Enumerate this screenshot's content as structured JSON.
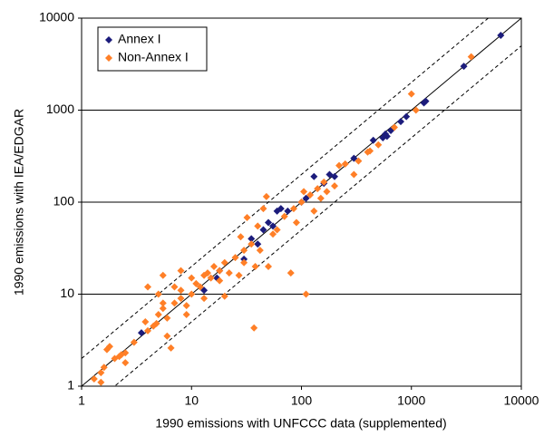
{
  "chart_data": {
    "type": "scatter",
    "x_label": "1990 emissions with UNFCCC data (supplemented)",
    "y_label": "1990 emissions with IEA/EDGAR",
    "xscale": "log",
    "yscale": "log",
    "xlim": [
      1,
      10000
    ],
    "ylim": [
      1,
      10000
    ],
    "xticks": [
      1,
      10,
      100,
      1000,
      10000
    ],
    "yticks": [
      1,
      10,
      100,
      1000,
      10000
    ],
    "grid": "y",
    "legend": "upper left",
    "reference_lines": [
      {
        "factor": 1,
        "style": "solid"
      },
      {
        "factor": 2,
        "style": "dashed"
      },
      {
        "factor": 0.5,
        "style": "dashed"
      }
    ],
    "series": [
      {
        "name": "Annex I",
        "color": "#1c1c7c",
        "x": [
          3.5,
          13,
          17,
          18,
          30,
          35,
          40,
          45,
          50,
          55,
          60,
          65,
          75,
          100,
          110,
          130,
          160,
          180,
          200,
          300,
          450,
          550,
          580,
          600,
          650,
          800,
          900,
          1300,
          1350,
          3000,
          6500
        ],
        "values": [
          3.8,
          11,
          15,
          18,
          24,
          40,
          35,
          50,
          60,
          55,
          80,
          85,
          80,
          100,
          110,
          190,
          160,
          200,
          190,
          300,
          470,
          500,
          550,
          520,
          600,
          750,
          850,
          1200,
          1250,
          3000,
          6500
        ]
      },
      {
        "name": "Non-Annex I",
        "color": "#ff7f27",
        "x": [
          1.3,
          1.5,
          1.5,
          1.6,
          1.7,
          1.8,
          2,
          2.2,
          2.3,
          2.5,
          2.5,
          3,
          3.8,
          4,
          4,
          4.5,
          4.8,
          5,
          5,
          5.5,
          5.5,
          5.5,
          6,
          6,
          6.5,
          7,
          7,
          8,
          8,
          8,
          9,
          9,
          10,
          10,
          11,
          12,
          13,
          13,
          14,
          15,
          16,
          18,
          18,
          20,
          20,
          22,
          25,
          27,
          28,
          30,
          30,
          32,
          35,
          37,
          38,
          40,
          42,
          45,
          48,
          50,
          55,
          60,
          70,
          80,
          85,
          90,
          100,
          105,
          110,
          120,
          130,
          140,
          150,
          160,
          170,
          200,
          220,
          250,
          300,
          330,
          400,
          420,
          500,
          700,
          1000,
          1100,
          3500
        ],
        "values": [
          1.2,
          1.4,
          1.1,
          1.6,
          2.5,
          2.7,
          2,
          2.1,
          2.2,
          1.8,
          2.3,
          3,
          5,
          12,
          4,
          4.5,
          4.8,
          6,
          10,
          16,
          8,
          7,
          3.5,
          5.5,
          2.6,
          12,
          8,
          18,
          11,
          9,
          6,
          7.5,
          10,
          15,
          13,
          12,
          9,
          16,
          17,
          15,
          20,
          18,
          14,
          9.5,
          22,
          17,
          25,
          16,
          42,
          30,
          22,
          68,
          35,
          4.3,
          20,
          55,
          30,
          85,
          115,
          20,
          45,
          50,
          70,
          17,
          85,
          60,
          100,
          130,
          10,
          120,
          80,
          140,
          110,
          165,
          130,
          150,
          250,
          260,
          200,
          280,
          350,
          360,
          420,
          650,
          1500,
          1000,
          3800
        ]
      }
    ]
  }
}
